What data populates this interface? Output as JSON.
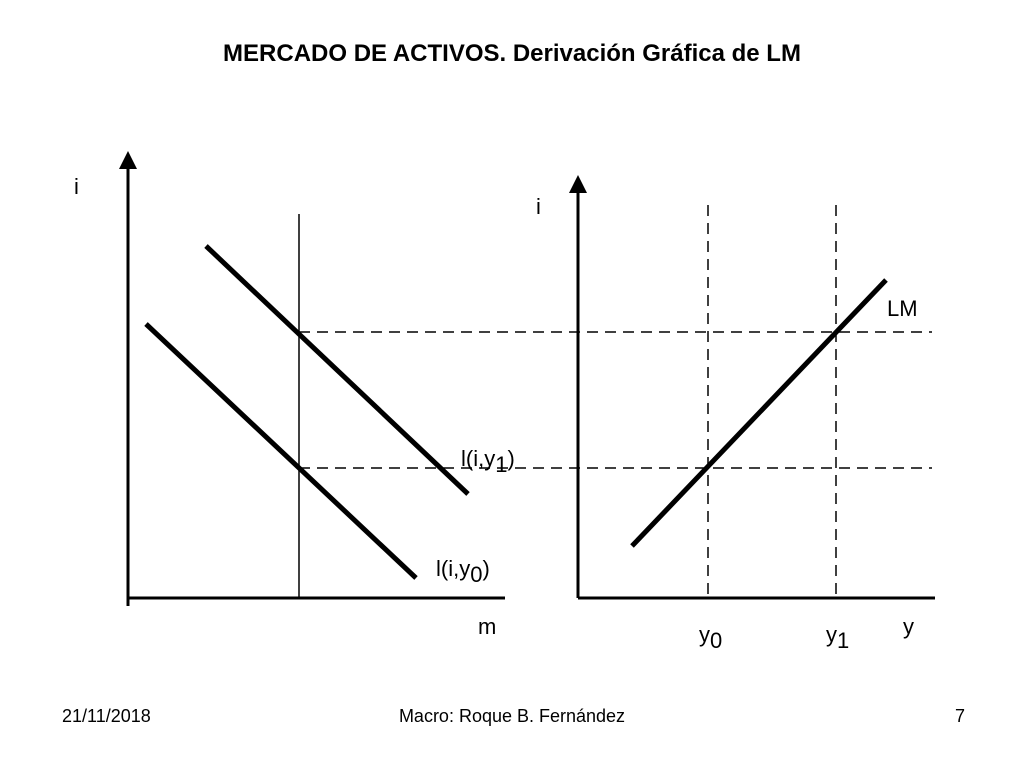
{
  "title": "MERCADO DE ACTIVOS. Derivación Gráfica de LM",
  "left_panel": {
    "y_axis_label": "i",
    "x_axis_label": "m",
    "curve_low": {
      "base": "l(i,y",
      "sub": "0",
      "close": ")"
    },
    "curve_high": {
      "base": "l(i,y",
      "sub": "1",
      "close": ")"
    }
  },
  "right_panel": {
    "y_axis_label": "i",
    "x_axis_label": "y",
    "curve_label": "LM",
    "tick_y0": {
      "base": "y",
      "sub": "0"
    },
    "tick_y1": {
      "base": "y",
      "sub": "1"
    }
  },
  "footer": {
    "date": "21/11/2018",
    "author": "Macro: Roque B. Fernández",
    "page": "7"
  }
}
